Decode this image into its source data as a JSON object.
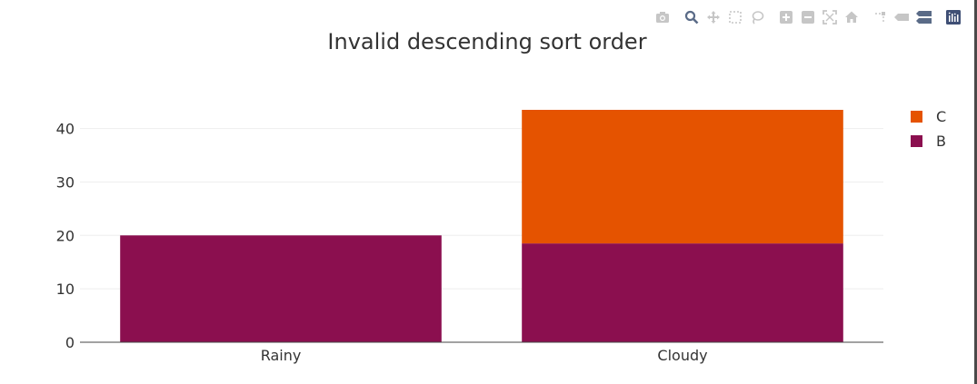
{
  "title": "Invalid descending sort order",
  "colors": {
    "series_C": "#e55300",
    "series_B": "#8b0f4f",
    "grid": "#eeeeee",
    "axis": "#444444",
    "text": "#333333",
    "modebar_icon": "#c6c6c6",
    "modebar_active": "#5a6b87"
  },
  "modebar": {
    "icons": [
      "camera-icon",
      "zoom-icon",
      "pan-icon",
      "box-select-icon",
      "lasso-icon",
      "zoom-in-icon",
      "zoom-out-icon",
      "autoscale-icon",
      "home-icon",
      "spike-lines-icon",
      "hover-closest-icon",
      "hover-compare-icon",
      "plotly-logo-icon"
    ]
  },
  "legend": {
    "items": [
      {
        "name": "C",
        "color": "#e55300"
      },
      {
        "name": "B",
        "color": "#8b0f4f"
      }
    ]
  },
  "chart_data": {
    "type": "bar",
    "barmode": "stack",
    "title": "Invalid descending sort order",
    "categories": [
      "Rainy",
      "Cloudy"
    ],
    "series": [
      {
        "name": "B",
        "values": [
          20,
          18.5
        ],
        "color": "#8b0f4f"
      },
      {
        "name": "C",
        "values": [
          0,
          25
        ],
        "color": "#e55300"
      }
    ],
    "ylim": [
      0,
      43.5
    ],
    "yticks": [
      0,
      10,
      20,
      30,
      40
    ],
    "xlabel": "",
    "ylabel": "",
    "grid": true,
    "legend_position": "top-right"
  }
}
